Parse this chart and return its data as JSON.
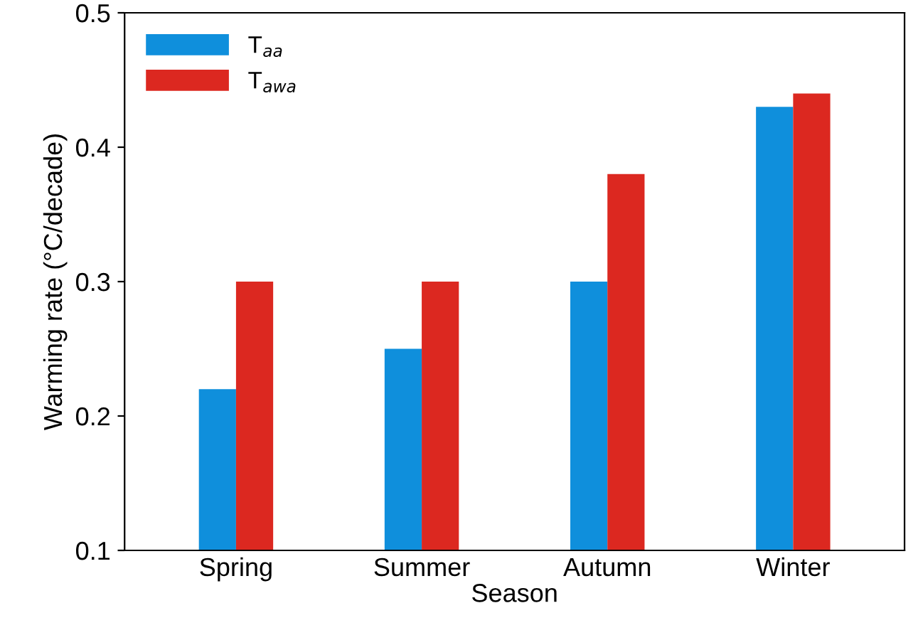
{
  "chart_data": {
    "type": "bar",
    "xlabel": "Season",
    "ylabel": "Warming rate (°C/decade)",
    "categories": [
      "Spring",
      "Summer",
      "Autumn",
      "Winter"
    ],
    "series": [
      {
        "name": "T$_{aa}$",
        "color": "#0f8fdc",
        "values": [
          0.22,
          0.25,
          0.3,
          0.43
        ]
      },
      {
        "name": "T$_{awa}$",
        "color": "#dc2820",
        "values": [
          0.3,
          0.3,
          0.38,
          0.44
        ]
      }
    ],
    "ylim": [
      0.1,
      0.5
    ],
    "yticks": [
      0.1,
      0.2,
      0.3,
      0.4,
      0.5
    ],
    "grid": false,
    "legend": "top left"
  }
}
